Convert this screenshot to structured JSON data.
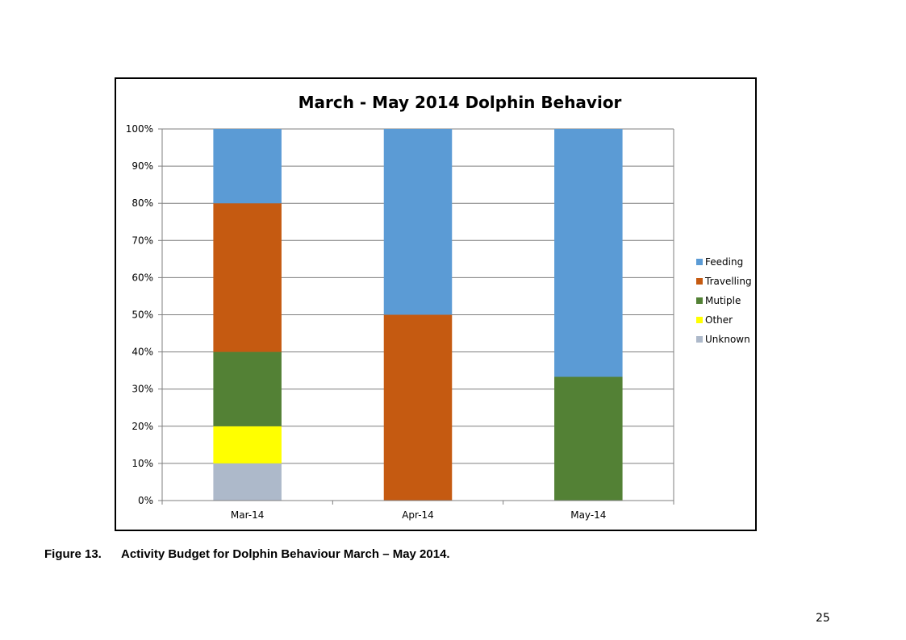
{
  "chart_data": {
    "type": "bar",
    "stacked": true,
    "percent_stacked": true,
    "title": "March - May 2014 Dolphin Behavior",
    "xlabel": "",
    "ylabel": "",
    "categories": [
      "Mar-14",
      "Apr-14",
      "May-14"
    ],
    "y_ticks": [
      "0%",
      "10%",
      "20%",
      "30%",
      "40%",
      "50%",
      "60%",
      "70%",
      "80%",
      "90%",
      "100%"
    ],
    "ylim": [
      0,
      100
    ],
    "grid": true,
    "legend_position": "right",
    "series": [
      {
        "name": "Unknown",
        "color": "#adb9ca",
        "values": [
          10,
          0,
          0
        ]
      },
      {
        "name": "Other",
        "color": "#ffff00",
        "values": [
          10,
          0,
          0
        ]
      },
      {
        "name": "Mutiple",
        "color": "#538135",
        "values": [
          20,
          0,
          33.3
        ]
      },
      {
        "name": "Travelling",
        "color": "#c55a11",
        "values": [
          40,
          50,
          0
        ]
      },
      {
        "name": "Feeding",
        "color": "#5b9bd5",
        "values": [
          20,
          50,
          66.7
        ]
      }
    ],
    "legend_order": [
      "Feeding",
      "Travelling",
      "Mutiple",
      "Other",
      "Unknown"
    ]
  },
  "caption": {
    "figure_number": "Figure 13.",
    "text": "Activity Budget for Dolphin Behaviour March – May 2014."
  },
  "page_number": "25"
}
